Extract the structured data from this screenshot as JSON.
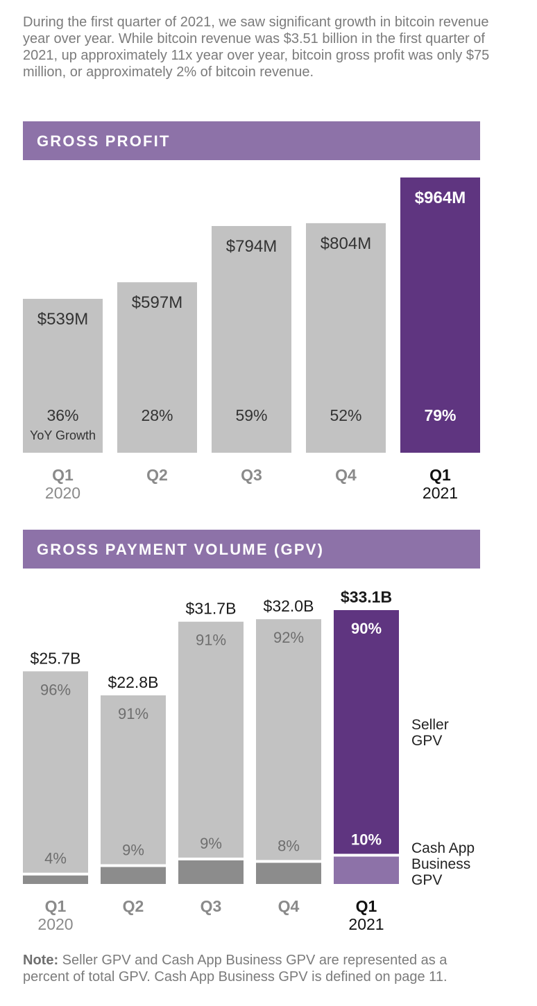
{
  "intro_text": "During the first quarter of 2021, we saw significant growth in bitcoin revenue year over year. While bitcoin revenue was $3.51 billion in the first quarter of 2021, up approximately 11x year over year, bitcoin gross profit was only $75 million, or approximately 2% of bitcoin revenue.",
  "sections": {
    "gross_profit": "GROSS PROFIT",
    "gpv": "GROSS PAYMENT VOLUME (GPV)"
  },
  "colors": {
    "bar_gray": "#c2c2c2",
    "bar_dark_gray": "#8c8c8c",
    "highlight_purple": "#5f3580",
    "light_purple": "#8d72a8",
    "header_purple": "#8d72a8"
  },
  "chart_data": [
    {
      "type": "bar",
      "title": "GROSS PROFIT",
      "categories": [
        {
          "quarter": "Q1",
          "year": "2020"
        },
        {
          "quarter": "Q2",
          "year": ""
        },
        {
          "quarter": "Q3",
          "year": ""
        },
        {
          "quarter": "Q4",
          "year": ""
        },
        {
          "quarter": "Q1",
          "year": "2021"
        }
      ],
      "values": [
        539,
        597,
        794,
        804,
        964
      ],
      "value_labels": [
        "$539M",
        "$597M",
        "$794M",
        "$804M",
        "$964M"
      ],
      "growth_labels": [
        "36%",
        "28%",
        "59%",
        "52%",
        "79%"
      ],
      "growth_caption": "YoY Growth",
      "unit": "$M",
      "highlight_index": 4
    },
    {
      "type": "bar",
      "stacked": true,
      "title": "GROSS PAYMENT VOLUME (GPV)",
      "categories": [
        {
          "quarter": "Q1",
          "year": "2020"
        },
        {
          "quarter": "Q2",
          "year": ""
        },
        {
          "quarter": "Q3",
          "year": ""
        },
        {
          "quarter": "Q4",
          "year": ""
        },
        {
          "quarter": "Q1",
          "year": "2021"
        }
      ],
      "totals": [
        25.7,
        22.8,
        31.7,
        32.0,
        33.1
      ],
      "total_labels": [
        "$25.7B",
        "$22.8B",
        "$31.7B",
        "$32.0B",
        "$33.1B"
      ],
      "unit": "$B",
      "series": [
        {
          "name": "Seller GPV",
          "name_lines": [
            "Seller",
            "GPV"
          ],
          "share_labels": [
            "96%",
            "91%",
            "91%",
            "92%",
            "90%"
          ]
        },
        {
          "name": "Cash App Business GPV",
          "name_lines": [
            "Cash App",
            "Business",
            "GPV"
          ],
          "share_labels": [
            "4%",
            "9%",
            "9%",
            "8%",
            "10%"
          ]
        }
      ],
      "highlight_index": 4
    }
  ],
  "note": {
    "label": "Note:",
    "text": " Seller GPV and Cash App Business GPV are represented as a percent of total GPV. Cash App Business GPV is defined on page 11."
  }
}
